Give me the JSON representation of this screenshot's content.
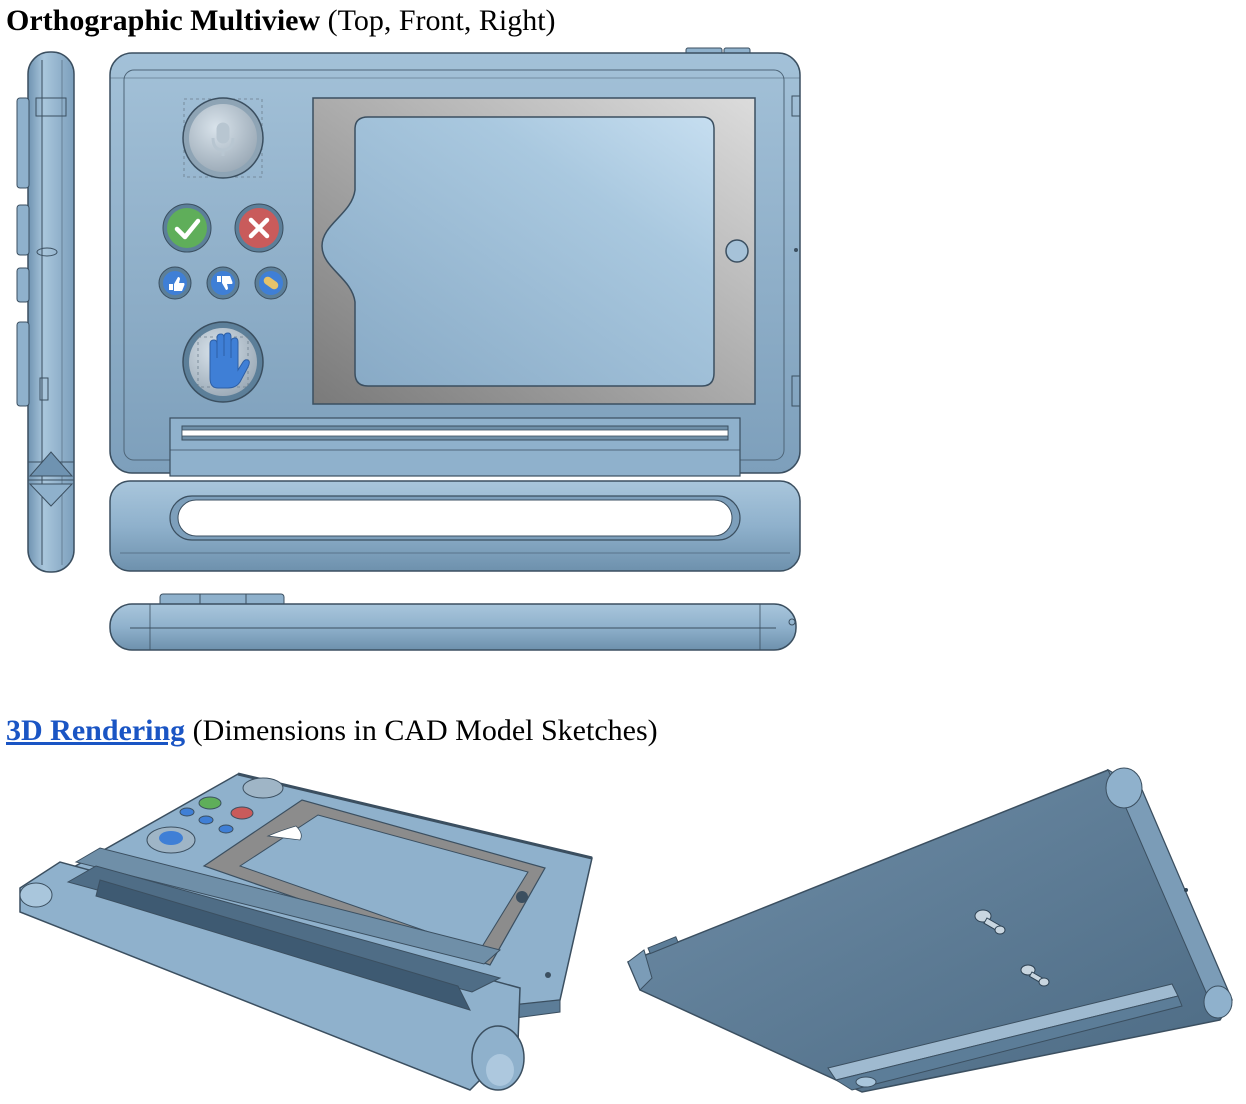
{
  "section1": {
    "title_bold": "Orthographic Multiview",
    "title_rest": " (Top, Front, Right)"
  },
  "section2": {
    "link_text": "3D Rendering",
    "title_rest": " (Dimensions in CAD Model Sketches)"
  },
  "colors": {
    "body_blue": "#8fb1cc",
    "body_dark": "#5c7d98",
    "outline": "#3b4f60",
    "frame_gray": "#8c8c8c",
    "confirm_green": "#5fae5a",
    "cancel_red": "#c95b5b",
    "button_blue": "#3f7fd6",
    "link_blue": "#1a55c4"
  },
  "icons": [
    "microphone-icon",
    "checkmark-icon",
    "close-icon",
    "thumbs-up-icon",
    "thumbs-down-icon",
    "bandage-icon",
    "hand-icon"
  ]
}
